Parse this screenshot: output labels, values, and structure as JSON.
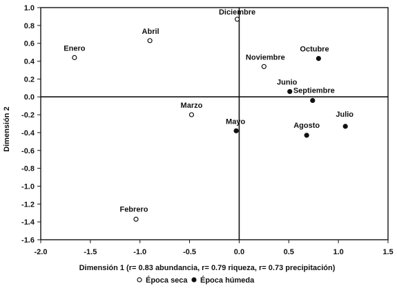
{
  "chart_data": {
    "type": "scatter",
    "xlabel": "Dimensión 1 (r= 0.83 abundancia, r= 0.79 riqueza, r= 0.73 precipitación)",
    "ylabel": "Dimensión 2",
    "xlim": [
      -2.0,
      1.5
    ],
    "ylim": [
      -1.6,
      1.0
    ],
    "x_ticks": [
      -2.0,
      -1.5,
      -1.0,
      -0.5,
      0.0,
      0.5,
      1.0,
      1.5
    ],
    "y_ticks": [
      1.0,
      0.8,
      0.6,
      0.4,
      0.2,
      0.0,
      -0.2,
      -0.4,
      -0.6,
      -0.8,
      -1.0,
      -1.2,
      -1.4,
      -1.6
    ],
    "x_tick_labels": [
      "-2.0",
      "-1.5",
      "-1.0",
      "-0.5",
      "0.0",
      "0.5",
      "1.0",
      "1.5"
    ],
    "y_tick_labels": [
      "1.0",
      "0.8",
      "0.6",
      "0.4",
      "0.2",
      "0.0",
      "-0.2",
      "-0.4",
      "-0.6",
      "-0.8",
      "-1.0",
      "-1.2",
      "-1.4",
      "-1.6"
    ],
    "reference_lines": {
      "x": 0.0,
      "y": 0.0
    },
    "grid": false,
    "legend_position": "bottom",
    "series": [
      {
        "name": "Época seca",
        "marker": "open-circle",
        "points": [
          {
            "label": "Enero",
            "x": -1.66,
            "y": 0.44
          },
          {
            "label": "Febrero",
            "x": -1.04,
            "y": -1.37
          },
          {
            "label": "Marzo",
            "x": -0.48,
            "y": -0.2
          },
          {
            "label": "Abril",
            "x": -0.9,
            "y": 0.63
          },
          {
            "label": "Diciembre",
            "x": -0.02,
            "y": 0.87
          },
          {
            "label": "Noviembre",
            "x": 0.25,
            "y": 0.34
          }
        ]
      },
      {
        "name": "Época húmeda",
        "marker": "filled-circle",
        "points": [
          {
            "label": "Mayo",
            "x": -0.03,
            "y": -0.38
          },
          {
            "label": "Junio",
            "x": 0.51,
            "y": 0.06
          },
          {
            "label": "Julio",
            "x": 1.07,
            "y": -0.33
          },
          {
            "label": "Agosto",
            "x": 0.68,
            "y": -0.43
          },
          {
            "label": "Septiembre",
            "x": 0.74,
            "y": -0.04
          },
          {
            "label": "Octubre",
            "x": 0.8,
            "y": 0.43
          }
        ]
      }
    ],
    "legend": [
      {
        "marker": "open-circle",
        "label": "Época seca"
      },
      {
        "marker": "filled-circle",
        "label": "Época húmeda"
      }
    ]
  }
}
